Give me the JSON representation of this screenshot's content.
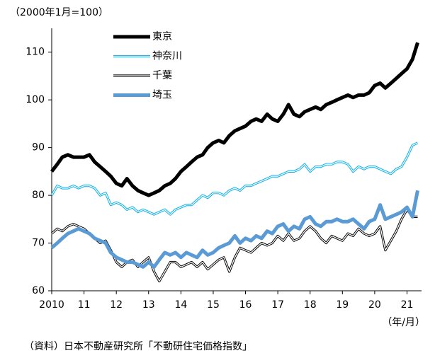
{
  "chart_data": {
    "type": "line",
    "title": "（2000年1月=100）",
    "x_label": "（年/月）",
    "source": "（資料）日本不動産研究所「不動研住宅価格指数」",
    "x": [
      2010,
      2010.17,
      2010.33,
      2010.5,
      2010.67,
      2010.83,
      2011,
      2011.17,
      2011.33,
      2011.5,
      2011.67,
      2011.83,
      2012,
      2012.17,
      2012.33,
      2012.5,
      2012.67,
      2012.83,
      2013,
      2013.17,
      2013.33,
      2013.5,
      2013.67,
      2013.83,
      2014,
      2014.17,
      2014.33,
      2014.5,
      2014.67,
      2014.83,
      2015,
      2015.17,
      2015.33,
      2015.5,
      2015.67,
      2015.83,
      2016,
      2016.17,
      2016.33,
      2016.5,
      2016.67,
      2016.83,
      2017,
      2017.17,
      2017.33,
      2017.5,
      2017.67,
      2017.83,
      2018,
      2018.17,
      2018.33,
      2018.5,
      2018.67,
      2018.83,
      2019,
      2019.17,
      2019.33,
      2019.5,
      2019.67,
      2019.83,
      2020,
      2020.17,
      2020.33,
      2020.5,
      2020.67,
      2020.83,
      2021,
      2021.17,
      2021.33
    ],
    "series": [
      {
        "name": "東京",
        "color": "#000000",
        "style": "solid",
        "width": 5,
        "values": [
          85,
          86.5,
          88,
          88.5,
          88,
          88,
          88,
          88.5,
          87,
          86,
          85,
          84,
          82.5,
          82,
          83.5,
          82,
          81,
          80.5,
          80,
          80.5,
          81,
          82,
          82.5,
          83.5,
          85,
          86,
          87,
          88,
          88.5,
          90,
          91,
          91.5,
          91,
          92.5,
          93.5,
          94,
          94.5,
          95.5,
          96,
          95.5,
          97,
          96,
          95.5,
          97,
          99,
          97,
          96.5,
          97.5,
          98,
          98.5,
          98,
          99,
          99.5,
          100,
          100.5,
          101,
          100.5,
          101,
          101,
          101.5,
          103,
          103.5,
          102.5,
          103.5,
          104.5,
          105.5,
          106.5,
          108.5,
          112
        ]
      },
      {
        "name": "神奈川",
        "color": "#00b0f0",
        "style": "double",
        "width": 3.2,
        "values": [
          80,
          82,
          81.5,
          81.5,
          82,
          81.5,
          82,
          82,
          81.5,
          80,
          80.5,
          78,
          78.5,
          78,
          77,
          77.5,
          76.5,
          77,
          76.5,
          76,
          76.5,
          77,
          76,
          77,
          77.5,
          78,
          78,
          79,
          80,
          79.5,
          80.5,
          80.5,
          80,
          81,
          81.5,
          81,
          82,
          82,
          82.5,
          83,
          83.5,
          84,
          84,
          84.5,
          85,
          85,
          85.5,
          86.5,
          85,
          86,
          86,
          86.5,
          86.5,
          87,
          87,
          86.5,
          85,
          86,
          85.5,
          86,
          86,
          85.5,
          85,
          84.5,
          85.5,
          86,
          88,
          90.5,
          91
        ]
      },
      {
        "name": "千葉",
        "color": "#000000",
        "style": "double",
        "width": 3.2,
        "values": [
          72,
          73,
          72.5,
          73.5,
          74,
          73.5,
          73,
          72,
          71,
          70,
          70.5,
          68.5,
          66,
          65,
          66,
          66.5,
          65,
          66,
          67,
          64,
          62,
          64,
          66,
          66,
          65,
          65.5,
          66,
          65,
          66,
          64.5,
          65.5,
          66.5,
          67,
          64,
          67,
          69,
          68.5,
          68,
          69,
          70,
          69.5,
          70,
          71.5,
          70.5,
          72,
          70.5,
          71,
          72.5,
          73.5,
          72.5,
          71,
          70,
          71.5,
          71,
          70.5,
          72,
          71.5,
          73,
          72,
          71.5,
          72,
          73.5,
          68.5,
          70.5,
          72.5,
          75,
          77,
          75.5,
          75.5
        ]
      },
      {
        "name": "埼玉",
        "color": "#5b9bd5",
        "style": "solid",
        "width": 5,
        "values": [
          69,
          70,
          71,
          72,
          72.5,
          73,
          72.5,
          72,
          71,
          70.5,
          70,
          68,
          67,
          66.5,
          66,
          66,
          65.5,
          65,
          66,
          65,
          66.5,
          68,
          67.5,
          68,
          67,
          68,
          67.5,
          67,
          68.5,
          67.5,
          68,
          69,
          69.5,
          70,
          71.5,
          70,
          71,
          70.5,
          71.5,
          71,
          72.5,
          72,
          73.5,
          74,
          72.5,
          73.5,
          73,
          75,
          75.5,
          74,
          73.5,
          74.5,
          74.5,
          75,
          74.5,
          74.5,
          75,
          74,
          73,
          74.5,
          75,
          78,
          75,
          75.5,
          76,
          76.5,
          77.5,
          75.5,
          81
        ]
      }
    ],
    "xlim": [
      2010,
      2021.45
    ],
    "ylim": [
      60,
      115
    ],
    "xticks": [
      {
        "value": 2010,
        "label": "2010"
      },
      {
        "value": 2011,
        "label": "11"
      },
      {
        "value": 2012,
        "label": "12"
      },
      {
        "value": 2013,
        "label": "13"
      },
      {
        "value": 2014,
        "label": "14"
      },
      {
        "value": 2015,
        "label": "15"
      },
      {
        "value": 2016,
        "label": "16"
      },
      {
        "value": 2017,
        "label": "17"
      },
      {
        "value": 2018,
        "label": "18"
      },
      {
        "value": 2019,
        "label": "19"
      },
      {
        "value": 2020,
        "label": "20"
      },
      {
        "value": 2021,
        "label": "21"
      }
    ],
    "yticks": [
      60,
      70,
      80,
      90,
      100,
      110
    ],
    "legend": "upper left"
  }
}
